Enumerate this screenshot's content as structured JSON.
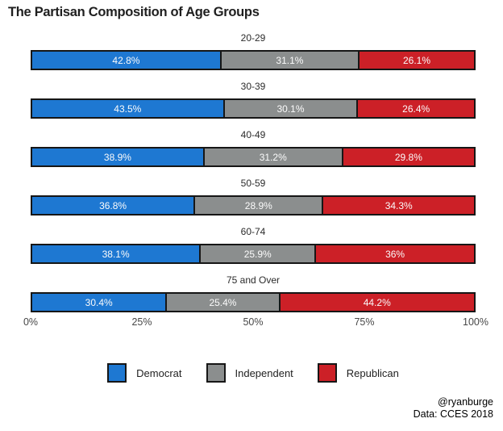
{
  "title": "The Partisan Composition of Age Groups",
  "chart_data": {
    "type": "bar",
    "variant": "horizontal-stacked-percent",
    "title": "The Partisan Composition of Age Groups",
    "categories": [
      "20-29",
      "30-39",
      "40-49",
      "50-59",
      "60-74",
      "75 and Over"
    ],
    "series": [
      {
        "name": "Democrat",
        "color": "#1e78d2",
        "values": [
          42.8,
          43.5,
          38.9,
          36.8,
          38.1,
          30.4
        ]
      },
      {
        "name": "Independent",
        "color": "#8b8e8e",
        "values": [
          31.1,
          30.1,
          31.2,
          28.9,
          25.9,
          25.4
        ]
      },
      {
        "name": "Republican",
        "color": "#cc2027",
        "values": [
          26.1,
          26.4,
          29.8,
          34.3,
          36,
          44.2
        ]
      }
    ],
    "segment_labels": [
      [
        "42.8%",
        "31.1%",
        "26.1%"
      ],
      [
        "43.5%",
        "30.1%",
        "26.4%"
      ],
      [
        "38.9%",
        "31.2%",
        "29.8%"
      ],
      [
        "36.8%",
        "28.9%",
        "34.3%"
      ],
      [
        "38.1%",
        "25.9%",
        "36%"
      ],
      [
        "30.4%",
        "25.4%",
        "44.2%"
      ]
    ],
    "x_ticks": [
      "0%",
      "25%",
      "50%",
      "75%",
      "100%"
    ],
    "xlim": [
      0,
      100
    ],
    "grid": false,
    "legend_position": "bottom",
    "bar_border_color": "#161616",
    "segment_text_color": "#fbfbfb"
  },
  "footer": {
    "handle": "@ryanburge",
    "source": "Data: CCES 2018"
  }
}
